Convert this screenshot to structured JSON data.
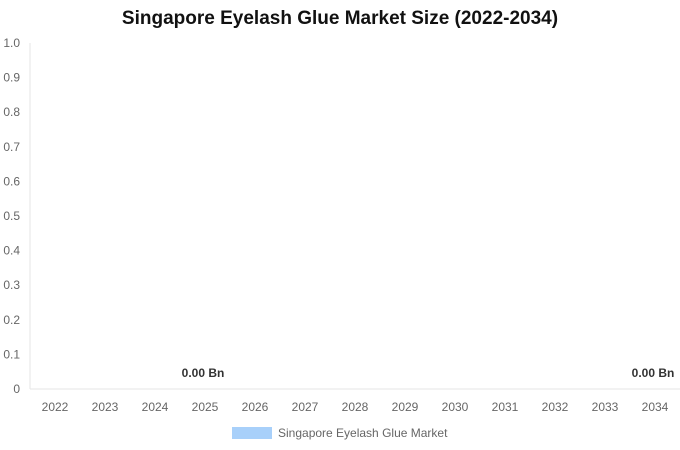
{
  "chart_data": {
    "type": "bar",
    "title": "Singapore Eyelash Glue Market Size (2022-2034)",
    "categories": [
      "2022",
      "2023",
      "2024",
      "2025",
      "2026",
      "2027",
      "2028",
      "2029",
      "2030",
      "2031",
      "2032",
      "2033",
      "2034"
    ],
    "series": [
      {
        "name": "Singapore Eyelash Glue Market",
        "values": [
          0,
          0,
          0,
          0,
          0,
          0,
          0,
          0,
          0,
          0,
          0,
          0,
          0
        ],
        "color": "#a8d0fa"
      }
    ],
    "data_labels": [
      {
        "category": "2025",
        "text": "0.00 Bn"
      },
      {
        "category": "2034",
        "text": "0.00 Bn"
      }
    ],
    "yticks": [
      "0",
      "0.1",
      "0.2",
      "0.3",
      "0.4",
      "0.5",
      "0.6",
      "0.7",
      "0.8",
      "0.9",
      "1.0"
    ],
    "ylim": [
      0,
      1
    ],
    "grid": false,
    "legend": "bottom-center"
  }
}
